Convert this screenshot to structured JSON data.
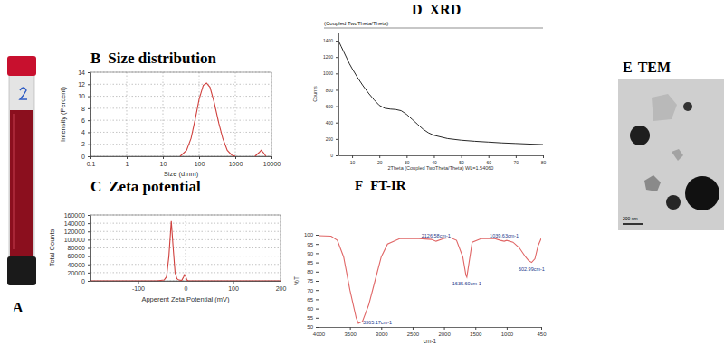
{
  "chart_data": [
    {
      "panel": "B",
      "title": "Size distribution",
      "type": "line",
      "x_label": "Size (d.nm)",
      "y_label": "Intensity (Percent)",
      "x": [
        30,
        45,
        60,
        80,
        100,
        130,
        160,
        200,
        260,
        350,
        450,
        600,
        800,
        1000,
        2000,
        3500,
        4500,
        5200,
        6000,
        7000
      ],
      "values": [
        0,
        1,
        3,
        6.5,
        9.5,
        11.8,
        12.2,
        11.5,
        9,
        5.5,
        3,
        1,
        0.2,
        0,
        null,
        0,
        0.6,
        1,
        0.6,
        0
      ],
      "color": "#d0413e",
      "log": "x",
      "xlim": [
        0.1,
        10000
      ],
      "xticks": [
        0.1,
        1,
        10,
        100,
        1000,
        10000
      ],
      "ylim": [
        0,
        14
      ],
      "yticks": [
        0,
        2,
        4,
        6,
        8,
        10,
        12,
        14
      ],
      "grid": true
    },
    {
      "panel": "C",
      "title": "Zeta potential",
      "type": "line",
      "x_label": "Apperent Zeta Potential (mV)",
      "y_label": "Total Counts",
      "x": [
        -200,
        -60,
        -45,
        -40,
        -35,
        -30,
        -26,
        -22,
        -18,
        -14,
        -8,
        -4,
        -2,
        0,
        3,
        6,
        200
      ],
      "values": [
        0,
        0,
        2000,
        10000,
        60000,
        145000,
        80000,
        20000,
        5000,
        2000,
        1000,
        10000,
        15000,
        12000,
        2000,
        0,
        0
      ],
      "color": "#d0413e",
      "xlim": [
        -200,
        200
      ],
      "xticks": [
        -100,
        0,
        100,
        200
      ],
      "ylim": [
        0,
        160000
      ],
      "yticks": [
        0,
        20000,
        40000,
        60000,
        80000,
        100000,
        120000,
        140000,
        160000
      ],
      "grid": true
    },
    {
      "panel": "D",
      "title": "XRD",
      "type": "line",
      "header": "(Coupled TwoTheta/Theta)",
      "x_label": "2Theta (Coupled TwoTheta/Theta) WL=1.54060",
      "y_label": "Counts",
      "x": [
        5,
        6,
        7,
        8,
        9,
        10,
        12,
        14,
        16,
        18,
        20,
        22,
        24,
        26,
        28,
        30,
        32,
        34,
        36,
        38,
        40,
        45,
        50,
        55,
        60,
        65,
        70,
        75,
        80
      ],
      "values": [
        1400,
        1330,
        1260,
        1190,
        1120,
        1060,
        950,
        850,
        760,
        680,
        610,
        575,
        565,
        560,
        545,
        500,
        440,
        380,
        320,
        275,
        245,
        205,
        185,
        172,
        162,
        152,
        145,
        138,
        132
      ],
      "color": "#111111",
      "xlim": [
        5,
        80
      ],
      "xticks": [
        10,
        20,
        30,
        40,
        50,
        60,
        70,
        80
      ],
      "ylim": [
        0,
        1500
      ],
      "yticks": [
        0,
        200,
        400,
        600,
        800,
        1000,
        1200,
        1400
      ],
      "grid": false
    },
    {
      "panel": "F",
      "title": "FT-IR",
      "type": "line",
      "x_label": "cm-1",
      "y_label": "%T",
      "x": [
        4000,
        3800,
        3700,
        3600,
        3500,
        3400,
        3365.17,
        3300,
        3200,
        3100,
        3000,
        2900,
        2700,
        2400,
        2200,
        2126.58,
        2000,
        1900,
        1800,
        1700,
        1650,
        1635.6,
        1600,
        1550,
        1400,
        1200,
        1100,
        1039.63,
        1000,
        900,
        800,
        700,
        650,
        602.99,
        550,
        500,
        450
      ],
      "values": [
        99.5,
        99.3,
        97,
        88,
        70,
        55,
        52,
        53,
        62,
        75,
        88,
        95,
        98,
        98,
        97.5,
        96.5,
        98,
        98.5,
        97,
        88,
        78,
        77,
        85,
        96,
        98,
        98,
        97,
        96.5,
        97,
        96,
        93,
        88,
        86,
        85,
        87,
        94,
        98
      ],
      "color": "#e06666",
      "xlim": [
        4000,
        450
      ],
      "xticks": [
        4000,
        3500,
        3000,
        2500,
        2000,
        1500,
        1000,
        450
      ],
      "ylim": [
        50,
        100
      ],
      "yticks": [
        50,
        55,
        60,
        65,
        70,
        75,
        80,
        85,
        90,
        95,
        100
      ],
      "grid": false,
      "annotations": [
        {
          "text": "3365.17cm-1",
          "x": 3365.17,
          "y": 52
        },
        {
          "text": "2126.58cm-1",
          "x": 2126.58,
          "y": 96.5
        },
        {
          "text": "1635.60cm-1",
          "x": 1635.6,
          "y": 77
        },
        {
          "text": "1039.63cm-1",
          "x": 1039.63,
          "y": 96.5
        },
        {
          "text": "602.99cm-1",
          "x": 602.99,
          "y": 85
        }
      ]
    }
  ],
  "images": [
    {
      "panel": "A"
    },
    {
      "panel": "E",
      "title": "TEM",
      "scale_bar": "200 nm"
    }
  ]
}
